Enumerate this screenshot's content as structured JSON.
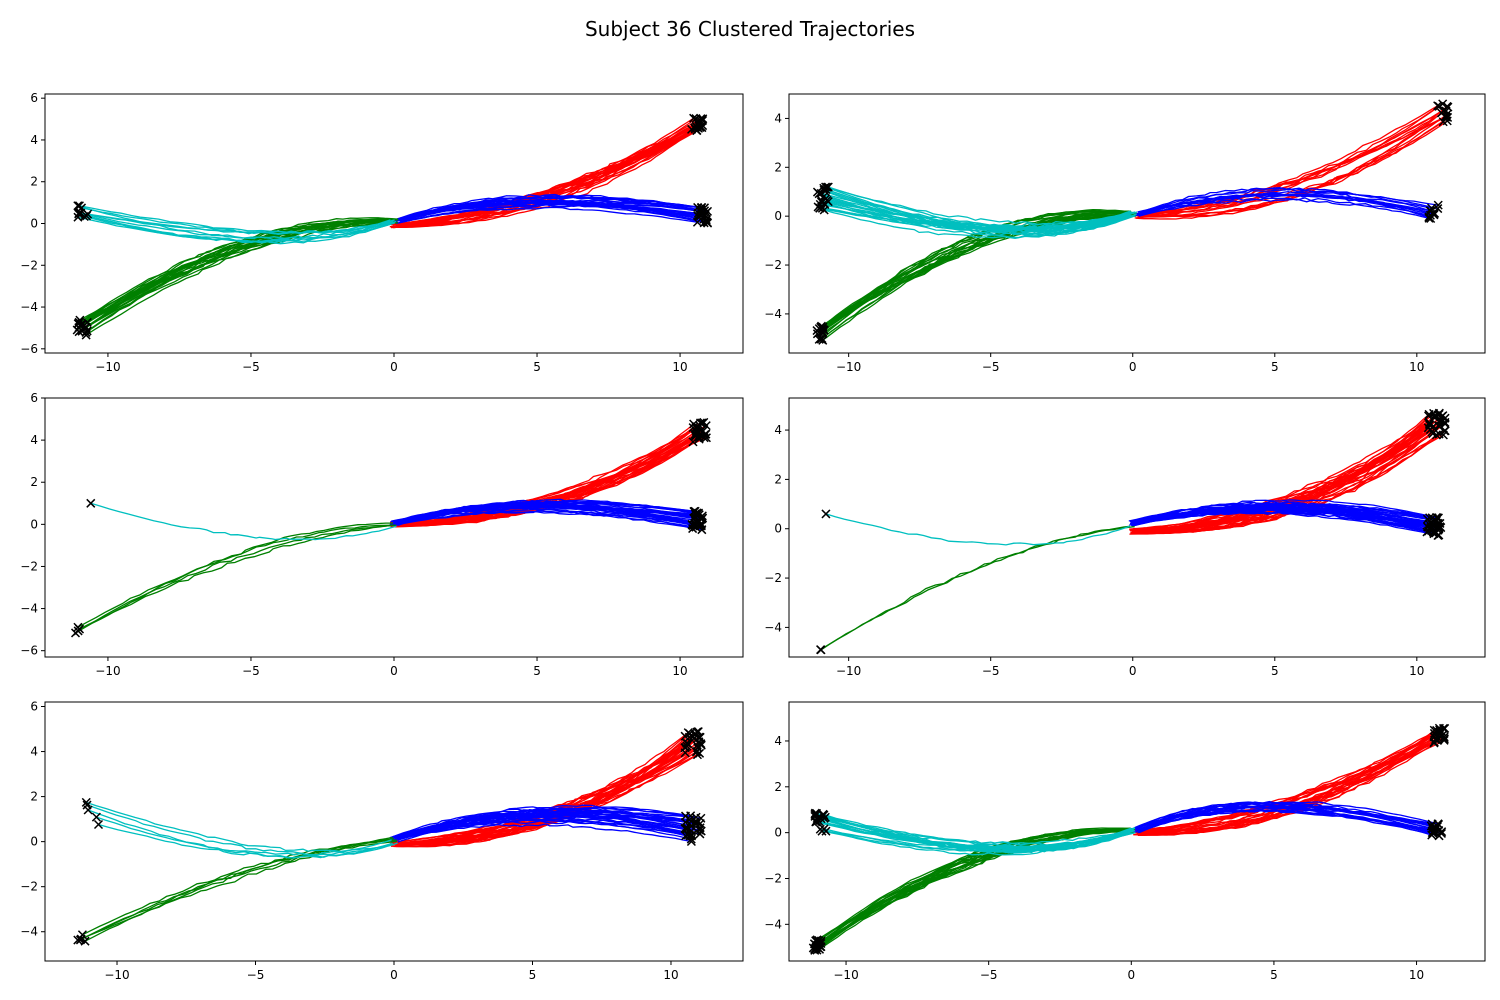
{
  "figure": {
    "title": "Subject 36 Clustered Trajectories",
    "cluster_colors": {
      "red": "#ff0000",
      "blue": "#0000ff",
      "green": "#008000",
      "cyan": "#00bfbf"
    },
    "endpoint_marker": {
      "symbol": "x",
      "color": "#000000"
    }
  },
  "chart_data": [
    {
      "type": "line",
      "xlim": [
        -12.2,
        12.2
      ],
      "ylim": [
        -6.2,
        6.2
      ],
      "xticks": [
        -10,
        -5,
        0,
        5,
        10
      ],
      "yticks": [
        -6,
        -4,
        -2,
        0,
        2,
        4,
        6
      ],
      "clusters": [
        {
          "color": "red",
          "count": 22,
          "start": [
            0,
            -0.1
          ],
          "ctrl": [
            5.5,
            0.3
          ],
          "end": [
            10.6,
            4.7
          ],
          "end_spread": [
            0.4,
            0.9
          ],
          "ctrl_spread": 0.6
        },
        {
          "color": "blue",
          "count": 24,
          "start": [
            0.1,
            0.1
          ],
          "ctrl": [
            4.5,
            1.8
          ],
          "end": [
            10.8,
            0.4
          ],
          "end_spread": [
            0.4,
            0.8
          ],
          "ctrl_spread": 0.4
        },
        {
          "color": "green",
          "count": 20,
          "start": [
            0,
            0.1
          ],
          "ctrl": [
            -5,
            0.3
          ],
          "end": [
            -10.9,
            -5.0
          ],
          "end_spread": [
            0.4,
            0.8
          ],
          "ctrl_spread": 0.6
        },
        {
          "color": "cyan",
          "count": 10,
          "start": [
            0,
            0.1
          ],
          "ctrl": [
            -4,
            -1.5
          ],
          "end": [
            -10.9,
            0.5
          ],
          "end_spread": [
            0.4,
            0.7
          ],
          "ctrl_spread": 0.6
        }
      ]
    },
    {
      "type": "line",
      "xlim": [
        -12.1,
        12.4
      ],
      "ylim": [
        -5.6,
        5.0
      ],
      "xticks": [
        -10,
        -5,
        0,
        5,
        10
      ],
      "yticks": [
        -4,
        -2,
        0,
        2,
        4
      ],
      "clusters": [
        {
          "color": "red",
          "count": 14,
          "start": [
            0.2,
            0
          ],
          "ctrl": [
            5.5,
            0.3
          ],
          "end": [
            10.9,
            4.2
          ],
          "end_spread": [
            0.4,
            0.8
          ],
          "ctrl_spread": 0.8
        },
        {
          "color": "blue",
          "count": 12,
          "start": [
            0.2,
            0.1
          ],
          "ctrl": [
            5,
            1.8
          ],
          "end": [
            10.6,
            0.2
          ],
          "end_spread": [
            0.4,
            0.6
          ],
          "ctrl_spread": 0.5
        },
        {
          "color": "green",
          "count": 18,
          "start": [
            0,
            0.1
          ],
          "ctrl": [
            -5,
            0.4
          ],
          "end": [
            -11.0,
            -4.8
          ],
          "end_spread": [
            0.3,
            0.6
          ],
          "ctrl_spread": 0.5
        },
        {
          "color": "cyan",
          "count": 24,
          "start": [
            0,
            0.1
          ],
          "ctrl": [
            -4,
            -1.5
          ],
          "end": [
            -10.9,
            0.7
          ],
          "end_spread": [
            0.4,
            1.0
          ],
          "ctrl_spread": 0.5
        }
      ]
    },
    {
      "type": "line",
      "xlim": [
        -12.2,
        12.2
      ],
      "ylim": [
        -6.3,
        6.0
      ],
      "xticks": [
        -10,
        -5,
        0,
        5,
        10
      ],
      "yticks": [
        -6,
        -4,
        -2,
        0,
        2,
        4,
        6
      ],
      "clusters": [
        {
          "color": "red",
          "count": 26,
          "start": [
            0,
            0
          ],
          "ctrl": [
            6,
            0.2
          ],
          "end": [
            10.7,
            4.4
          ],
          "end_spread": [
            0.5,
            1.0
          ],
          "ctrl_spread": 0.6
        },
        {
          "color": "blue",
          "count": 30,
          "start": [
            0,
            0.05
          ],
          "ctrl": [
            4.5,
            1.6
          ],
          "end": [
            10.6,
            0.2
          ],
          "end_spread": [
            0.4,
            1.0
          ],
          "ctrl_spread": 0.4
        },
        {
          "color": "green",
          "count": 4,
          "start": [
            0,
            0
          ],
          "ctrl": [
            -5,
            -0.3
          ],
          "end": [
            -11.0,
            -5.0
          ],
          "end_spread": [
            0.4,
            0.9
          ],
          "ctrl_spread": 0.5
        },
        {
          "color": "cyan",
          "count": 1,
          "start": [
            0,
            0
          ],
          "ctrl": [
            -4,
            -1.8
          ],
          "end": [
            -10.6,
            1.0
          ],
          "end_spread": [
            0,
            0
          ],
          "ctrl_spread": 0.1
        }
      ]
    },
    {
      "type": "line",
      "xlim": [
        -12.1,
        12.4
      ],
      "ylim": [
        -5.2,
        5.3
      ],
      "xticks": [
        -10,
        -5,
        0,
        5,
        10
      ],
      "yticks": [
        -4,
        -2,
        0,
        2,
        4
      ],
      "clusters": [
        {
          "color": "red",
          "count": 32,
          "start": [
            0,
            -0.1
          ],
          "ctrl": [
            6,
            0
          ],
          "end": [
            10.7,
            4.3
          ],
          "end_spread": [
            0.6,
            1.0
          ],
          "ctrl_spread": 0.6
        },
        {
          "color": "blue",
          "count": 36,
          "start": [
            0,
            0.2
          ],
          "ctrl": [
            5,
            1.6
          ],
          "end": [
            10.6,
            0.1
          ],
          "end_spread": [
            0.5,
            0.8
          ],
          "ctrl_spread": 0.4
        },
        {
          "color": "green",
          "count": 2,
          "start": [
            0,
            0.1
          ],
          "ctrl": [
            -5,
            -0.6
          ],
          "end": [
            -11.0,
            -4.9
          ],
          "end_spread": [
            0.2,
            0.1
          ],
          "ctrl_spread": 0.3
        },
        {
          "color": "cyan",
          "count": 1,
          "start": [
            0,
            0.1
          ],
          "ctrl": [
            -4,
            -1.5
          ],
          "end": [
            -10.8,
            0.6
          ],
          "end_spread": [
            0,
            0
          ],
          "ctrl_spread": 0.1
        }
      ]
    },
    {
      "type": "line",
      "xlim": [
        -12.6,
        12.6
      ],
      "ylim": [
        -5.3,
        6.2
      ],
      "xticks": [
        -10,
        -5,
        0,
        5,
        10
      ],
      "yticks": [
        -4,
        -2,
        0,
        2,
        4,
        6
      ],
      "clusters": [
        {
          "color": "red",
          "count": 28,
          "start": [
            0,
            -0.1
          ],
          "ctrl": [
            6,
            0
          ],
          "end": [
            10.8,
            4.3
          ],
          "end_spread": [
            0.6,
            1.2
          ],
          "ctrl_spread": 0.7
        },
        {
          "color": "blue",
          "count": 30,
          "start": [
            0,
            0.1
          ],
          "ctrl": [
            5,
            1.9
          ],
          "end": [
            10.8,
            0.6
          ],
          "end_spread": [
            0.6,
            1.2
          ],
          "ctrl_spread": 0.5
        },
        {
          "color": "green",
          "count": 5,
          "start": [
            0,
            0.1
          ],
          "ctrl": [
            -5,
            -0.5
          ],
          "end": [
            -11.3,
            -4.3
          ],
          "end_spread": [
            0.4,
            0.6
          ],
          "ctrl_spread": 0.5
        },
        {
          "color": "cyan",
          "count": 5,
          "start": [
            0,
            0
          ],
          "ctrl": [
            -4,
            -1.5
          ],
          "end": [
            -10.9,
            1.2
          ],
          "end_spread": [
            0.8,
            1.2
          ],
          "ctrl_spread": 0.5
        }
      ]
    },
    {
      "type": "line",
      "xlim": [
        -12.0,
        12.4
      ],
      "ylim": [
        -5.6,
        5.7
      ],
      "xticks": [
        -10,
        -5,
        0,
        5,
        10
      ],
      "yticks": [
        -4,
        -2,
        0,
        2,
        4
      ],
      "clusters": [
        {
          "color": "red",
          "count": 24,
          "start": [
            0.2,
            0
          ],
          "ctrl": [
            5.5,
            0.3
          ],
          "end": [
            10.8,
            4.3
          ],
          "end_spread": [
            0.4,
            0.8
          ],
          "ctrl_spread": 0.7
        },
        {
          "color": "blue",
          "count": 18,
          "start": [
            0.2,
            0.1
          ],
          "ctrl": [
            4,
            2.2
          ],
          "end": [
            10.7,
            0.1
          ],
          "end_spread": [
            0.4,
            0.6
          ],
          "ctrl_spread": 0.4
        },
        {
          "color": "green",
          "count": 20,
          "start": [
            0,
            0.1
          ],
          "ctrl": [
            -5,
            0.3
          ],
          "end": [
            -11.0,
            -4.9
          ],
          "end_spread": [
            0.3,
            0.5
          ],
          "ctrl_spread": 0.5
        },
        {
          "color": "cyan",
          "count": 20,
          "start": [
            0,
            0.1
          ],
          "ctrl": [
            -4,
            -1.6
          ],
          "end": [
            -10.9,
            0.5
          ],
          "end_spread": [
            0.4,
            0.9
          ],
          "ctrl_spread": 0.5
        }
      ]
    }
  ]
}
